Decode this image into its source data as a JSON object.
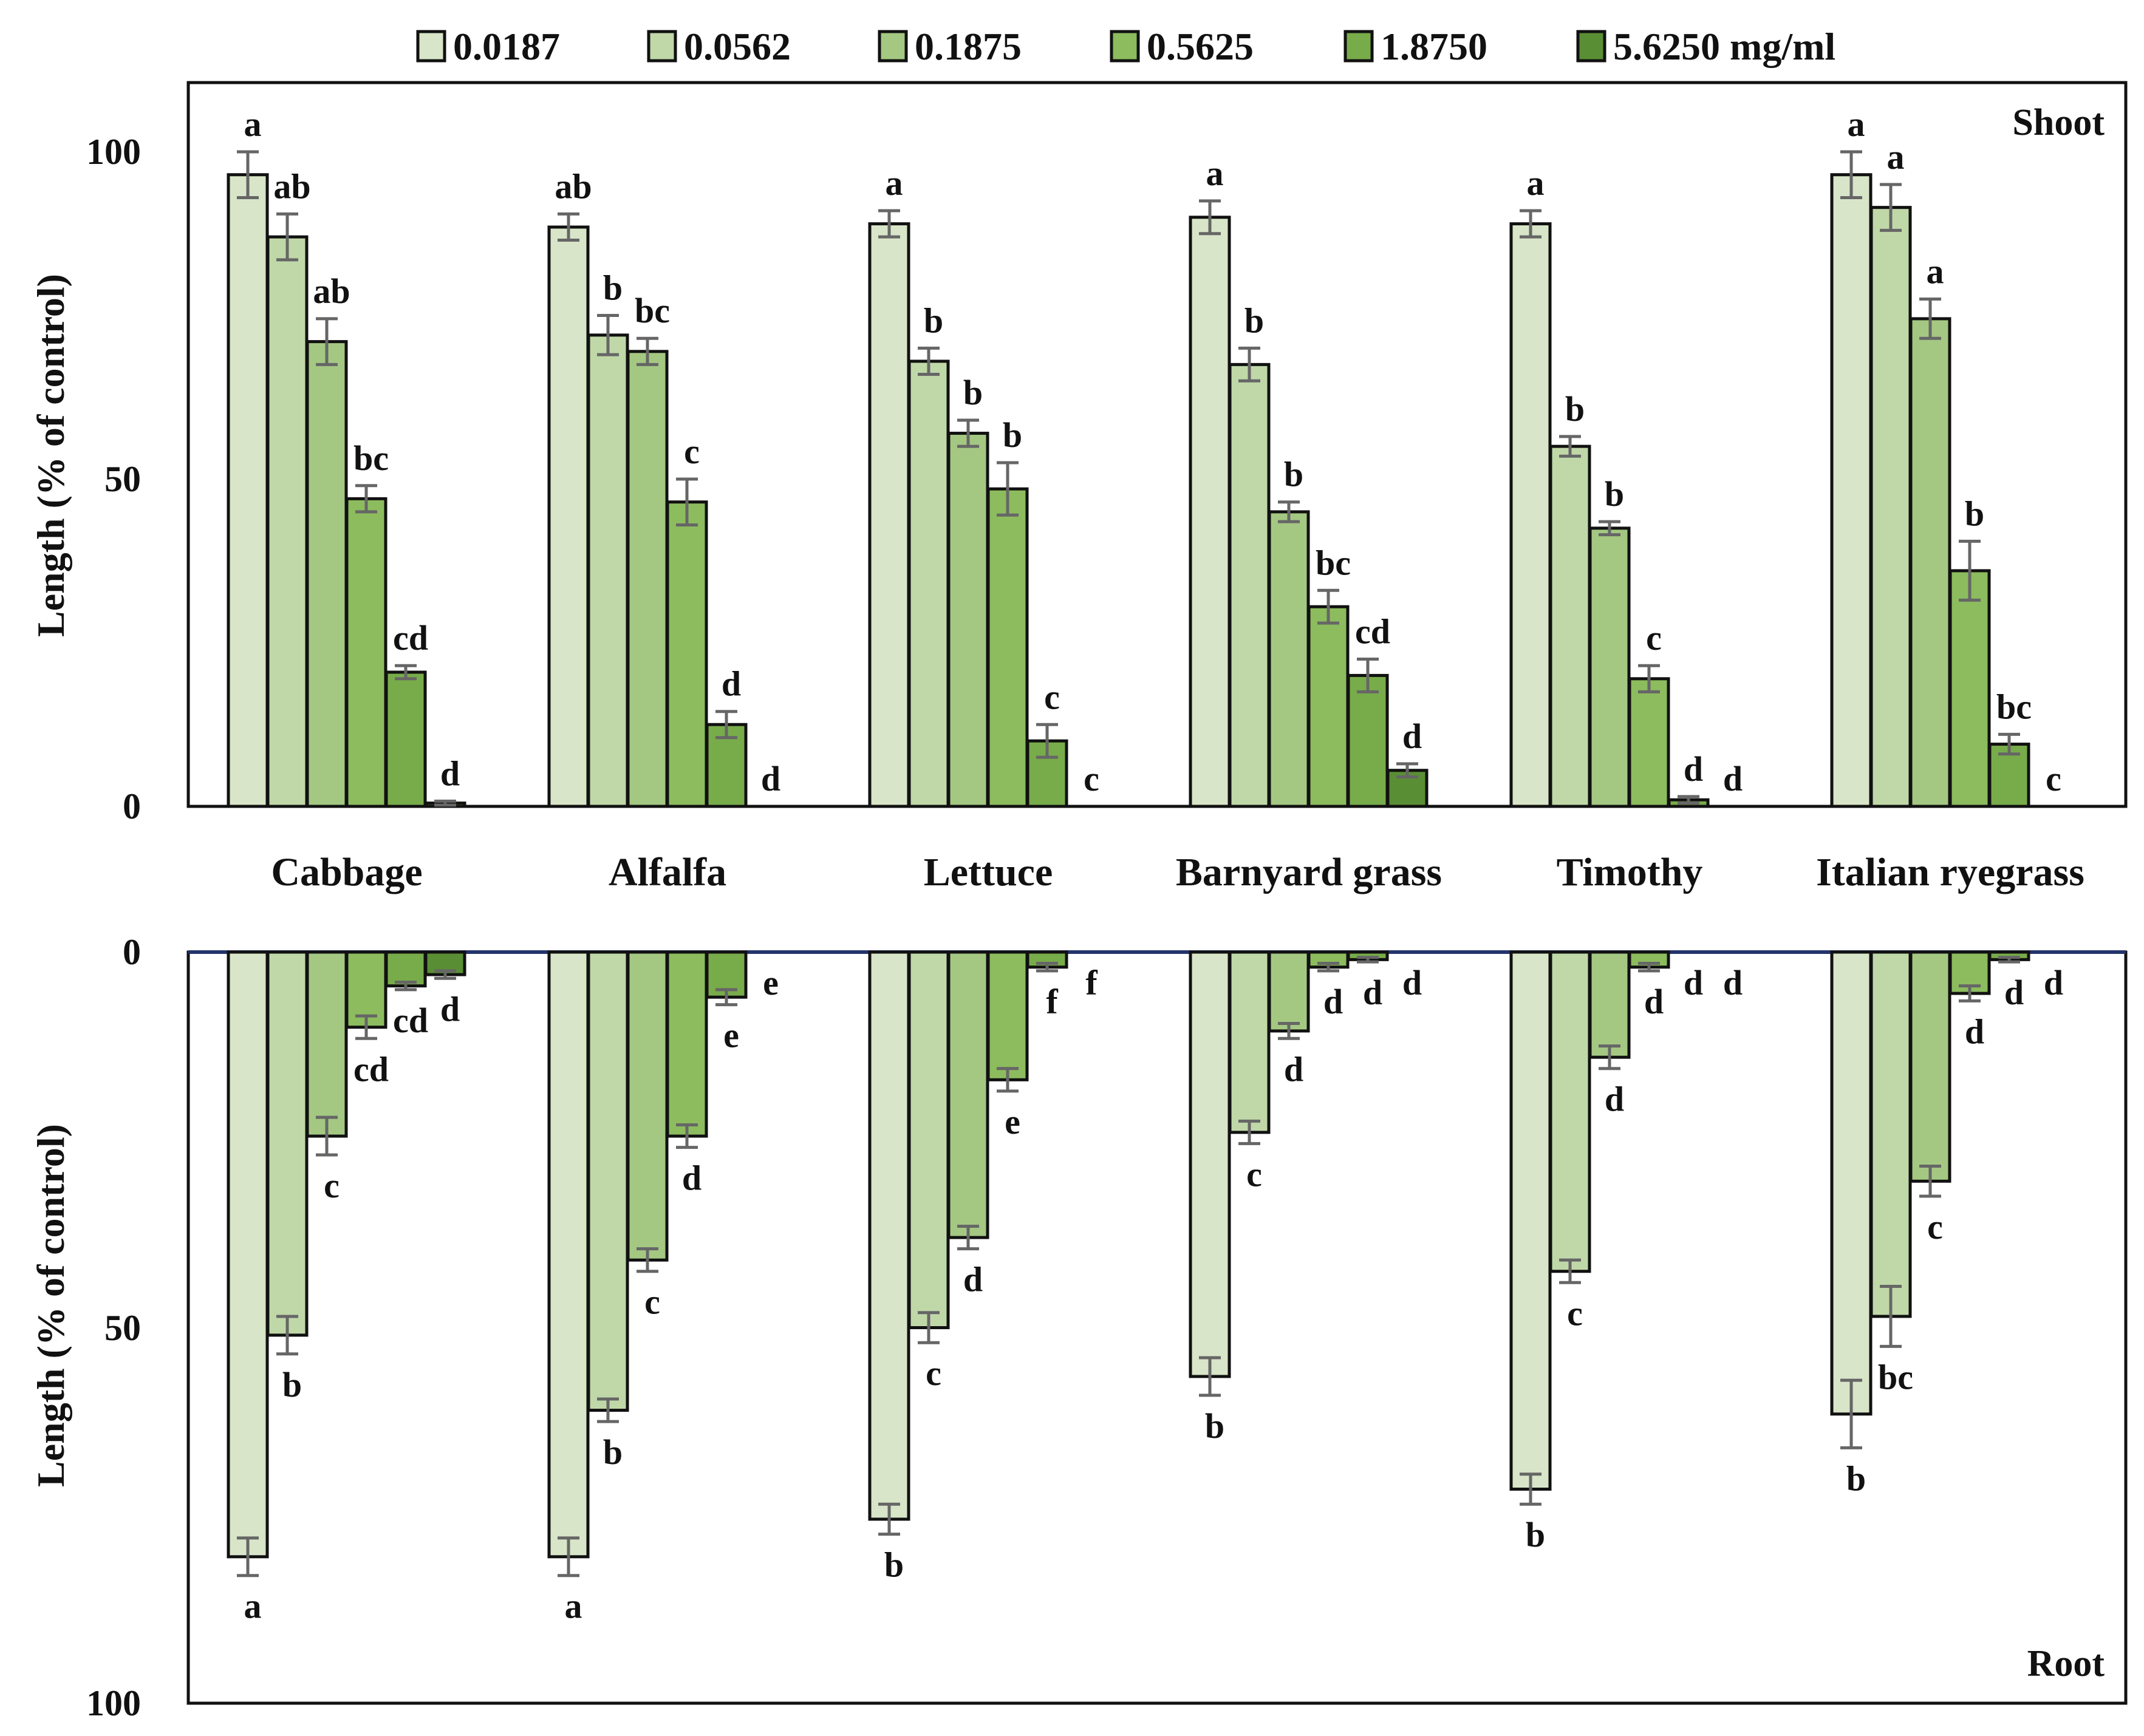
{
  "chart_data": [
    {
      "type": "bar",
      "panel_label": "Shoot",
      "ylabel": "Length (% of control)",
      "ylim": [
        0,
        110
      ],
      "yticks": [
        "0",
        "50",
        "100"
      ],
      "categories": [
        "Cabbage",
        "Alfalfa",
        "Lettuce",
        "Barnyard grass",
        "Timothy",
        "Italian ryegrass"
      ],
      "series": [
        {
          "name": "0.0187",
          "values": [
            96.5,
            88.5,
            89,
            90,
            89,
            96.5
          ],
          "errors": [
            3.5,
            2,
            2,
            2.5,
            2,
            3.5
          ],
          "labels": [
            "a",
            "ab",
            "a",
            "a",
            "a",
            "a"
          ]
        },
        {
          "name": "0.0562",
          "values": [
            87,
            72,
            68,
            67.5,
            55,
            91.5
          ],
          "errors": [
            3.5,
            3,
            2,
            2.5,
            1.5,
            3.5
          ],
          "labels": [
            "ab",
            "b",
            "b",
            "b",
            "b",
            "a"
          ]
        },
        {
          "name": "0.1875",
          "values": [
            71,
            69.5,
            57,
            45,
            42.5,
            74.5
          ],
          "errors": [
            3.5,
            2,
            2,
            1.5,
            1,
            3
          ],
          "labels": [
            "ab",
            "bc",
            "b",
            "b",
            "b",
            "a"
          ]
        },
        {
          "name": "0.5625",
          "values": [
            47,
            46.5,
            48.5,
            30.5,
            19.5,
            36
          ],
          "errors": [
            2,
            3.5,
            4,
            2.5,
            2,
            4.5
          ],
          "labels": [
            "bc",
            "c",
            "b",
            "bc",
            "c",
            "b"
          ]
        },
        {
          "name": "1.8750",
          "values": [
            20.5,
            12.5,
            10,
            20,
            1,
            9.5
          ],
          "errors": [
            1,
            2,
            2.5,
            2.5,
            0.5,
            1.5
          ],
          "labels": [
            "cd",
            "d",
            "c",
            "cd",
            "d",
            "bc"
          ]
        },
        {
          "name": "5.6250 mg/ml",
          "values": [
            0.5,
            0,
            0,
            5.5,
            0,
            0
          ],
          "errors": [
            0.3,
            0,
            0,
            1,
            0,
            0
          ],
          "labels": [
            "d",
            "d",
            "c",
            "d",
            "d",
            "c"
          ]
        }
      ]
    },
    {
      "type": "bar",
      "panel_label": "Root",
      "ylabel": "Length (% of control)",
      "ylim": [
        0,
        100
      ],
      "yticks": [
        "0",
        "50",
        "100"
      ],
      "inverted": true,
      "categories": [
        "Cabbage",
        "Alfalfa",
        "Lettuce",
        "Barnyard grass",
        "Timothy",
        "Italian ryegrass"
      ],
      "series": [
        {
          "name": "0.0187",
          "values": [
            80.5,
            80.5,
            75.5,
            56.5,
            71.5,
            61.5
          ],
          "errors": [
            2.5,
            2.5,
            2,
            2.5,
            2,
            4.5
          ],
          "labels": [
            "a",
            "a",
            "b",
            "b",
            "b",
            "b"
          ]
        },
        {
          "name": "0.0562",
          "values": [
            51,
            61,
            50,
            24,
            42.5,
            48.5
          ],
          "errors": [
            2.5,
            1.5,
            2,
            1.5,
            1.5,
            4
          ],
          "labels": [
            "b",
            "b",
            "c",
            "c",
            "c",
            "bc"
          ]
        },
        {
          "name": "0.1875",
          "values": [
            24.5,
            41,
            38,
            10.5,
            14,
            30.5
          ],
          "errors": [
            2.5,
            1.5,
            1.5,
            1,
            1.5,
            2
          ],
          "labels": [
            "c",
            "c",
            "d",
            "d",
            "d",
            "c"
          ]
        },
        {
          "name": "0.5625",
          "values": [
            10,
            24.5,
            17,
            2,
            2,
            5.5
          ],
          "errors": [
            1.5,
            1.5,
            1.5,
            0.5,
            0.5,
            1
          ],
          "labels": [
            "cd",
            "d",
            "e",
            "d",
            "d",
            "d"
          ]
        },
        {
          "name": "1.8750",
          "values": [
            4.5,
            6,
            2,
            1,
            0,
            1
          ],
          "errors": [
            0.5,
            1,
            0.5,
            0.3,
            0,
            0.3
          ],
          "labels": [
            "cd",
            "e",
            "f",
            "d",
            "d",
            "d"
          ]
        },
        {
          "name": "5.6250 mg/ml",
          "values": [
            3,
            0,
            0,
            0,
            0,
            0
          ],
          "errors": [
            0.5,
            0,
            0,
            0,
            0,
            0
          ],
          "labels": [
            "d",
            "e",
            "f",
            "d",
            "d",
            "d"
          ]
        }
      ]
    }
  ],
  "legend": {
    "entries": [
      "0.0187",
      "0.0562",
      "0.1875",
      "0.5625",
      "1.8750",
      "5.6250 mg/ml"
    ],
    "placement": "top-center"
  },
  "colors": [
    "#d8e5c8",
    "#c0d8a8",
    "#a4c882",
    "#8cbc5e",
    "#78ac4a",
    "#5a8e34"
  ],
  "error_color": "#666666"
}
